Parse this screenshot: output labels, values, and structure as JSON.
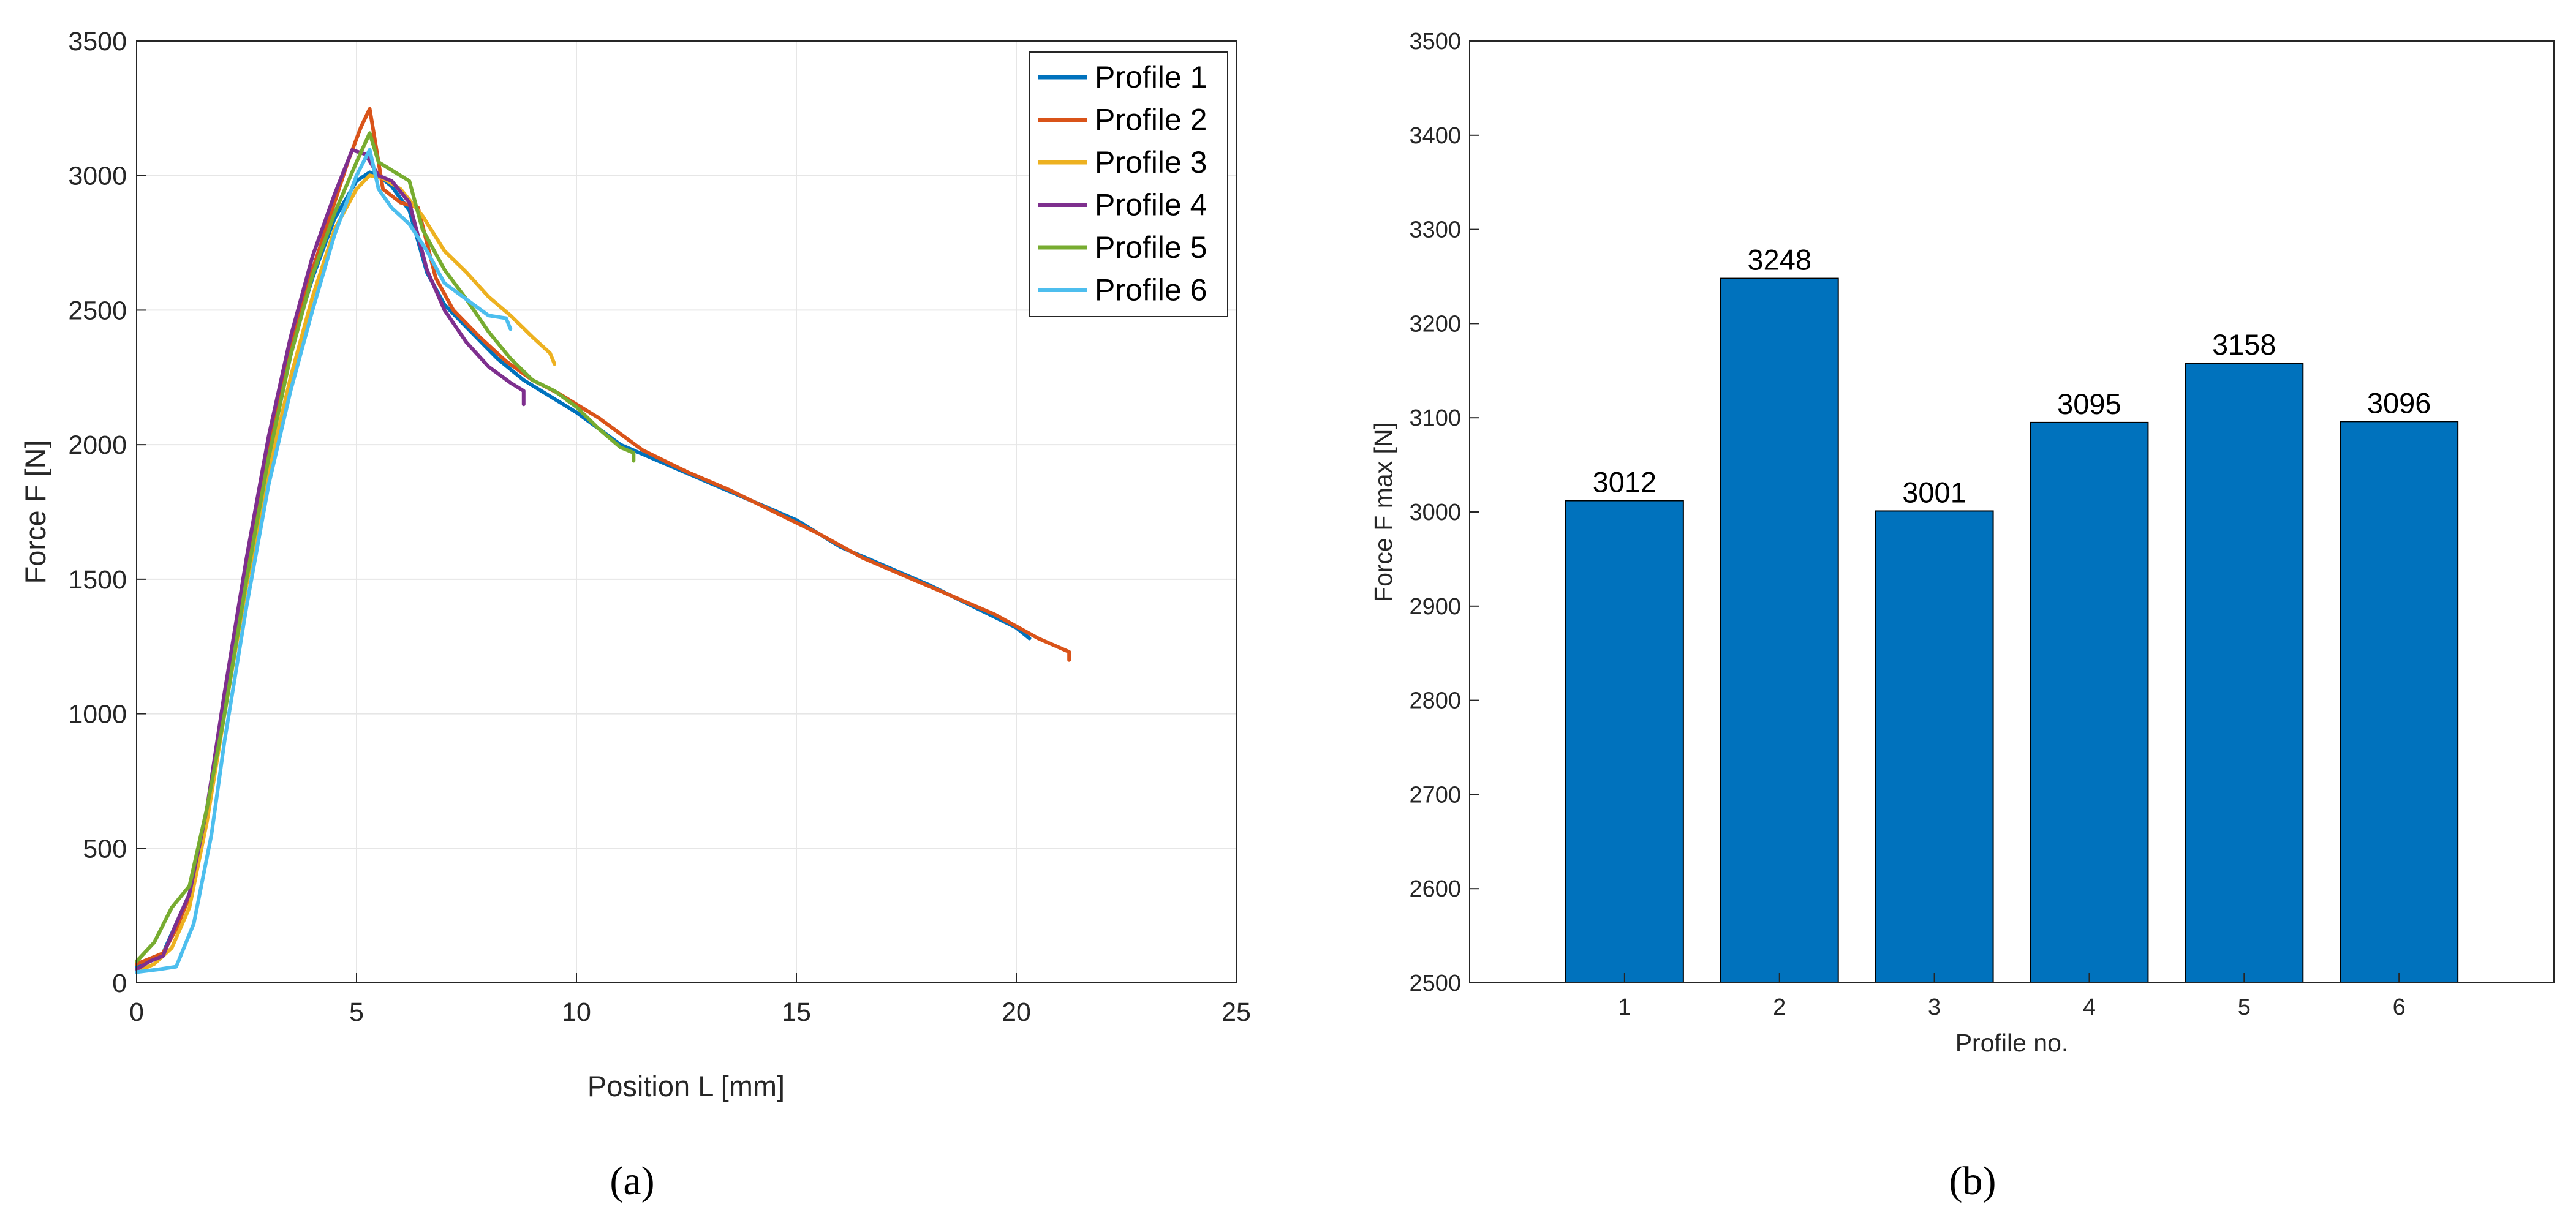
{
  "chart_data": [
    {
      "id": "a",
      "panel_label": "(a)",
      "type": "line",
      "title": "",
      "xlabel": "Position L [mm]",
      "ylabel": "Force F [N]",
      "xlim": [
        0,
        25
      ],
      "ylim": [
        0,
        3500
      ],
      "xticks": [
        "0",
        "5",
        "10",
        "15",
        "20",
        "25"
      ],
      "yticks": [
        "0",
        "500",
        "1000",
        "1500",
        "2000",
        "2500",
        "3000",
        "3500"
      ],
      "grid": true,
      "legend_position": "top-right",
      "series": [
        {
          "name": "Profile 1",
          "color": "#0072BD",
          "x": [
            0,
            0.3,
            0.6,
            0.9,
            1.2,
            1.6,
            2.0,
            2.5,
            3.0,
            3.5,
            4.0,
            4.5,
            5.0,
            5.3,
            5.5,
            5.8,
            6.2,
            6.6,
            7.0,
            7.6,
            8.2,
            8.8,
            9.3,
            10.0,
            11.0,
            12.0,
            13.0,
            14.0,
            15.0,
            16.0,
            17.0,
            18.0,
            19.0,
            20.0,
            20.3
          ],
          "y": [
            60,
            85,
            110,
            220,
            330,
            650,
            1050,
            1550,
            2000,
            2350,
            2620,
            2840,
            2980,
            3012,
            3000,
            2960,
            2870,
            2640,
            2520,
            2420,
            2320,
            2240,
            2190,
            2120,
            2000,
            1930,
            1860,
            1790,
            1720,
            1620,
            1550,
            1480,
            1400,
            1320,
            1280
          ]
        },
        {
          "name": "Profile 2",
          "color": "#D95319",
          "x": [
            0,
            0.3,
            0.6,
            0.9,
            1.2,
            1.6,
            2.0,
            2.5,
            3.0,
            3.5,
            4.0,
            4.5,
            4.8,
            5.1,
            5.3,
            5.4,
            5.6,
            6.0,
            6.4,
            6.8,
            7.2,
            7.8,
            8.4,
            9.0,
            9.6,
            10.5,
            11.5,
            12.5,
            13.5,
            14.5,
            15.5,
            16.5,
            17.5,
            18.5,
            19.5,
            20.5,
            21.2,
            21.2
          ],
          "y": [
            70,
            90,
            110,
            200,
            320,
            620,
            1050,
            1550,
            2000,
            2350,
            2650,
            2900,
            3050,
            3180,
            3248,
            3150,
            2950,
            2900,
            2880,
            2620,
            2500,
            2400,
            2310,
            2240,
            2190,
            2100,
            1980,
            1900,
            1830,
            1750,
            1670,
            1580,
            1510,
            1440,
            1370,
            1280,
            1230,
            1200
          ]
        },
        {
          "name": "Profile 3",
          "color": "#EDB120",
          "x": [
            0,
            0.4,
            0.8,
            1.2,
            1.6,
            2.0,
            2.5,
            3.0,
            3.5,
            4.0,
            4.5,
            5.0,
            5.3,
            5.6,
            6.0,
            6.5,
            7.0,
            7.5,
            8.0,
            8.5,
            9.0,
            9.4,
            9.5
          ],
          "y": [
            40,
            70,
            130,
            280,
            600,
            1000,
            1480,
            1900,
            2250,
            2550,
            2800,
            2950,
            3001,
            2990,
            2950,
            2850,
            2720,
            2640,
            2550,
            2480,
            2400,
            2340,
            2300
          ]
        },
        {
          "name": "Profile 4",
          "color": "#7E2F8E",
          "x": [
            0,
            0.3,
            0.6,
            0.9,
            1.2,
            1.6,
            2.0,
            2.5,
            3.0,
            3.5,
            4.0,
            4.5,
            4.9,
            5.2,
            5.5,
            5.8,
            6.2,
            6.6,
            7.0,
            7.5,
            8.0,
            8.5,
            8.8,
            8.8
          ],
          "y": [
            50,
            80,
            100,
            220,
            330,
            650,
            1080,
            1580,
            2030,
            2400,
            2700,
            2930,
            3095,
            3080,
            3000,
            2980,
            2900,
            2650,
            2500,
            2380,
            2290,
            2230,
            2200,
            2150
          ]
        },
        {
          "name": "Profile 5",
          "color": "#77AC30",
          "x": [
            0,
            0.4,
            0.8,
            1.2,
            1.6,
            2.0,
            2.5,
            3.0,
            3.5,
            4.0,
            4.5,
            5.0,
            5.3,
            5.5,
            5.8,
            6.2,
            6.5,
            7.0,
            7.5,
            8.0,
            8.5,
            9.0,
            9.5,
            10.0,
            10.5,
            11.0,
            11.3,
            11.3
          ],
          "y": [
            80,
            150,
            280,
            360,
            650,
            1000,
            1500,
            1950,
            2330,
            2630,
            2860,
            3050,
            3158,
            3050,
            3020,
            2980,
            2800,
            2650,
            2540,
            2420,
            2320,
            2240,
            2200,
            2140,
            2060,
            1990,
            1970,
            1940
          ]
        },
        {
          "name": "Profile 6",
          "color": "#4DBEEE",
          "x": [
            0,
            0.5,
            0.9,
            1.3,
            1.7,
            2.0,
            2.5,
            3.0,
            3.5,
            4.0,
            4.5,
            5.0,
            5.3,
            5.5,
            5.8,
            6.2,
            6.6,
            7.0,
            7.5,
            8.0,
            8.4,
            8.5
          ],
          "y": [
            40,
            50,
            60,
            220,
            550,
            900,
            1400,
            1850,
            2200,
            2500,
            2780,
            3000,
            3096,
            2950,
            2880,
            2820,
            2720,
            2600,
            2540,
            2480,
            2470,
            2430
          ]
        }
      ]
    },
    {
      "id": "b",
      "panel_label": "(b)",
      "type": "bar",
      "title": "",
      "xlabel": "Profile no.",
      "ylabel": "Force F max [N]",
      "categories": [
        "1",
        "2",
        "3",
        "4",
        "5",
        "6"
      ],
      "values": [
        3012,
        3248,
        3001,
        3095,
        3158,
        3096
      ],
      "data_labels": [
        "3012",
        "3248",
        "3001",
        "3095",
        "3158",
        "3096"
      ],
      "ylim": [
        2500,
        3500
      ],
      "yticks": [
        "2500",
        "2600",
        "2700",
        "2800",
        "2900",
        "3000",
        "3100",
        "3200",
        "3300",
        "3400",
        "3500"
      ],
      "grid": false,
      "bar_color": "#0072BD"
    }
  ]
}
